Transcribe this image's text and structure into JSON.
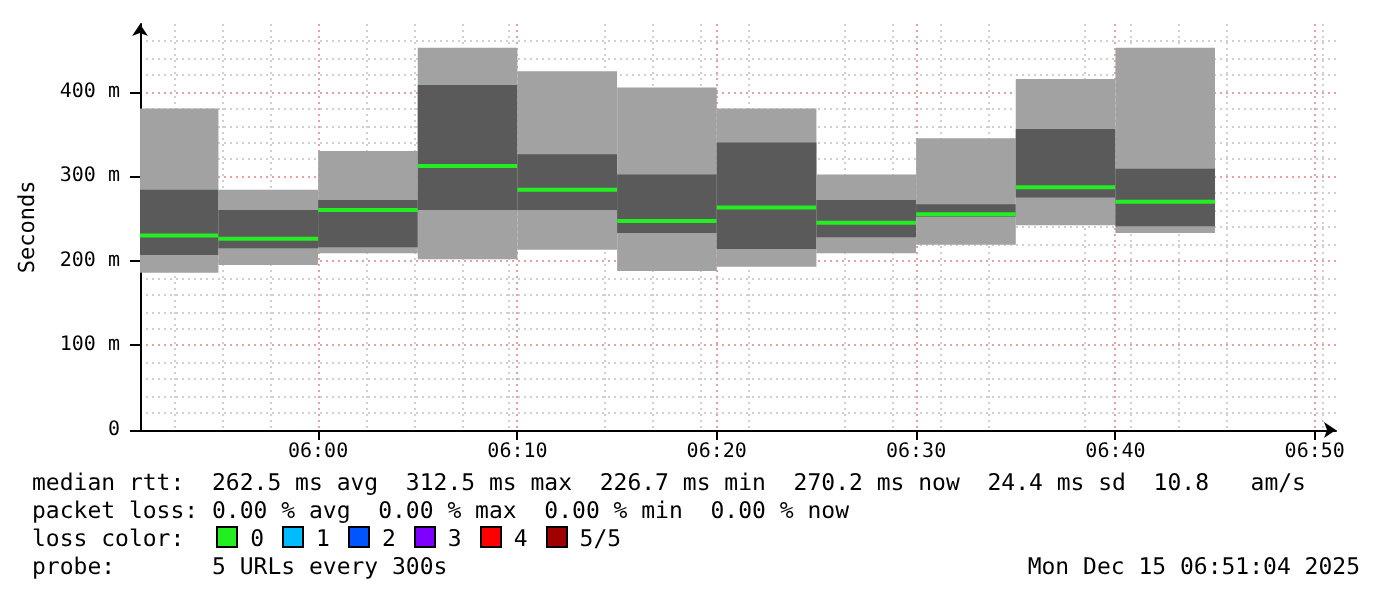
{
  "chart_data": {
    "type": "box",
    "ylabel": "Seconds",
    "x": [
      5.875,
      5.9583,
      6.0417,
      6.125,
      6.2083,
      6.2917,
      6.375,
      6.4583,
      6.5417,
      6.625,
      6.7083
    ],
    "series": [
      {
        "color": "#5a5a5a",
        "boxes": [
          {
            "low": 186,
            "q1": 207,
            "median": 230,
            "q3": 284,
            "high": 380
          },
          {
            "low": 195,
            "q1": 215,
            "median": 226,
            "q3": 260,
            "high": 284
          },
          {
            "low": 209,
            "q1": 216,
            "median": 260,
            "q3": 272,
            "high": 330
          },
          {
            "low": 202,
            "q1": 260,
            "median": 312,
            "q3": 408,
            "high": 452
          },
          {
            "low": 213,
            "q1": 260,
            "median": 284,
            "q3": 326,
            "high": 424
          },
          {
            "low": 188,
            "q1": 233,
            "median": 247,
            "q3": 302,
            "high": 405
          },
          {
            "low": 193,
            "q1": 214,
            "median": 263,
            "q3": 340,
            "high": 380
          },
          {
            "low": 209,
            "q1": 228,
            "median": 245,
            "q3": 272,
            "high": 302
          },
          {
            "low": 219,
            "q1": 252,
            "median": 255,
            "q3": 267,
            "high": 345
          },
          {
            "low": 242,
            "q1": 275,
            "median": 287,
            "q3": 356,
            "high": 415
          },
          {
            "low": 233,
            "q1": 241,
            "median": 270,
            "q3": 309,
            "high": 452
          }
        ]
      }
    ],
    "xlim": [
      5.8511,
      6.8511
    ],
    "xticks": [
      {
        "value": 6,
        "label": "06:00"
      },
      {
        "value": 6.1667,
        "label": "06:10"
      },
      {
        "value": 6.3333,
        "label": "06:20"
      },
      {
        "value": 6.5,
        "label": "06:30"
      },
      {
        "value": 6.6667,
        "label": "06:40"
      },
      {
        "value": 6.8333,
        "label": "06:50"
      }
    ],
    "ylim": [
      0,
      480
    ],
    "yticks": [
      0,
      {
        "value": 100,
        "label": "100 m"
      },
      {
        "value": 200,
        "label": "200 m"
      },
      {
        "value": 300,
        "label": "300 m"
      },
      {
        "value": 400,
        "label": "400 m"
      }
    ],
    "grid": true,
    "annotations": [
      "median rtt:  262.5 ms avg  312.5 ms max  226.7 ms min  270.2 ms now  24.4 ms sd  10.8   am/s",
      "packet loss: 0.00 % avg  0.00 % max  0.00 % min  0.00 % now",
      "loss color:",
      "0",
      "1",
      "2",
      "3",
      "4",
      "5/5",
      "probe:       5 URLs every 300s",
      "Mon Dec 15 06:51:04 2025"
    ]
  }
}
